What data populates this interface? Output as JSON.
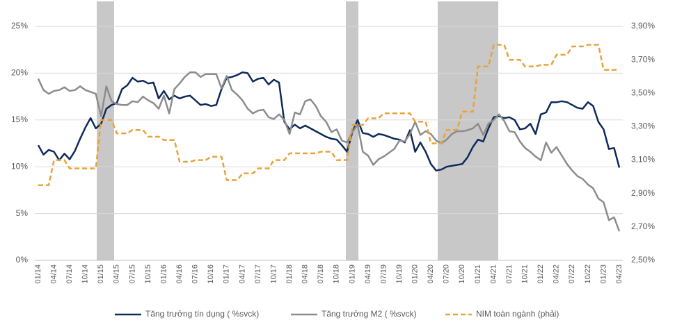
{
  "chart_data": {
    "type": "line",
    "categories": [
      "01/14",
      null,
      null,
      "04/14",
      null,
      null,
      "07/14",
      null,
      null,
      "10/14",
      null,
      null,
      "01/15",
      null,
      null,
      "04/15",
      null,
      null,
      "07/15",
      null,
      null,
      "10/15",
      null,
      null,
      "01/16",
      null,
      null,
      "04/16",
      null,
      null,
      "07/16",
      null,
      null,
      "10/16",
      null,
      null,
      "01/17",
      null,
      null,
      "04/17",
      null,
      null,
      "07/17",
      null,
      null,
      "10/17",
      null,
      null,
      "01/18",
      null,
      null,
      "04/18",
      null,
      null,
      "07/18",
      null,
      null,
      "10/18",
      null,
      null,
      "01/19",
      null,
      null,
      "04/19",
      null,
      null,
      "07/19",
      null,
      null,
      "10/19",
      null,
      null,
      "01/20",
      null,
      null,
      "04/20",
      null,
      null,
      "07/20",
      null,
      null,
      "10/20",
      null,
      null,
      "01/21",
      null,
      null,
      "04/21",
      null,
      null,
      "07/21",
      null,
      null,
      "10/21",
      null,
      null,
      "01/22",
      null,
      null,
      "04/22",
      null,
      null,
      "07/22",
      null,
      null,
      "10/22",
      null,
      null,
      "01/23",
      null,
      null,
      "04/23"
    ],
    "series": [
      {
        "name": "Tăng trưởng tín dụng ( %svck)",
        "color": "#0e2a5c",
        "dashed": false,
        "values": [
          12.3,
          11.3,
          11.8,
          11.6,
          10.7,
          11.4,
          10.8,
          11.7,
          13.0,
          14.2,
          15.2,
          14.1,
          14.6,
          16.2,
          16.6,
          16.8,
          18.3,
          18.7,
          19.5,
          19.1,
          19.2,
          18.9,
          19.0,
          17.3,
          18.1,
          17.2,
          17.6,
          17.3,
          17.5,
          17.6,
          17.1,
          16.6,
          16.7,
          16.5,
          16.6,
          18.3,
          19.5,
          19.6,
          19.8,
          20.1,
          20.0,
          19.1,
          19.4,
          19.5,
          18.8,
          19.3,
          19.0,
          14.8,
          14.0,
          14.5,
          14.1,
          14.4,
          14.1,
          13.8,
          13.5,
          13.2,
          13.0,
          12.9,
          12.3,
          11.6,
          13.7,
          15.0,
          13.6,
          13.5,
          13.2,
          13.5,
          13.4,
          13.2,
          13.0,
          12.9,
          12.6,
          13.9,
          11.6,
          12.6,
          11.6,
          10.3,
          9.6,
          9.7,
          10.0,
          10.1,
          10.2,
          10.3,
          11.0,
          12.1,
          12.9,
          12.7,
          14.1,
          15.3,
          15.4,
          15.2,
          15.3,
          15.0,
          14.0,
          14.1,
          14.6,
          13.5,
          15.6,
          15.8,
          16.9,
          16.9,
          17.0,
          16.9,
          16.6,
          16.3,
          16.2,
          16.9,
          16.5,
          14.8,
          14.0,
          11.9,
          12.0,
          9.9
        ]
      },
      {
        "name": "Tăng trưởng M2 ( %svck)",
        "color": "#8c8c8c",
        "dashed": false,
        "values": [
          19.4,
          18.2,
          17.8,
          18.1,
          18.2,
          18.5,
          18.1,
          18.2,
          18.6,
          18.2,
          18.0,
          17.8,
          15.4,
          18.6,
          17.0,
          16.7,
          16.6,
          16.6,
          17.0,
          16.9,
          17.5,
          17.1,
          16.8,
          16.2,
          17.6,
          15.7,
          18.3,
          18.9,
          19.6,
          20.1,
          20.1,
          19.6,
          19.9,
          19.9,
          19.9,
          18.4,
          19.7,
          18.2,
          17.7,
          17.1,
          16.2,
          15.7,
          16.0,
          16.1,
          15.3,
          15.1,
          15.6,
          15.0,
          13.5,
          15.8,
          15.6,
          17.0,
          17.2,
          16.5,
          15.4,
          14.8,
          13.7,
          14.0,
          12.8,
          12.6,
          13.7,
          14.5,
          11.6,
          11.2,
          10.2,
          10.8,
          11.1,
          11.5,
          11.9,
          12.8,
          12.7,
          13.5,
          14.8,
          13.4,
          13.8,
          13.5,
          12.8,
          12.5,
          12.9,
          13.5,
          13.8,
          13.8,
          13.9,
          14.1,
          14.6,
          13.4,
          14.6,
          15.0,
          15.6,
          14.9,
          13.8,
          13.7,
          12.7,
          12.0,
          11.6,
          11.1,
          10.7,
          12.6,
          11.5,
          12.1,
          11.2,
          10.3,
          9.6,
          9.0,
          8.7,
          8.1,
          7.7,
          6.6,
          6.2,
          4.3,
          4.6,
          3.1
        ]
      },
      {
        "name": "NIM toàn ngành (phải)",
        "color": "#e9a23b",
        "dashed": true,
        "axis": "y2",
        "values": [
          2.95,
          2.95,
          2.95,
          3.1,
          3.1,
          3.1,
          3.05,
          3.05,
          3.05,
          3.05,
          3.05,
          3.05,
          3.34,
          3.34,
          3.34,
          3.26,
          3.26,
          3.26,
          3.28,
          3.28,
          3.28,
          3.24,
          3.24,
          3.24,
          3.22,
          3.22,
          3.22,
          3.09,
          3.09,
          3.09,
          3.1,
          3.1,
          3.1,
          3.12,
          3.12,
          3.12,
          2.98,
          2.98,
          2.98,
          3.02,
          3.02,
          3.02,
          3.05,
          3.05,
          3.05,
          3.1,
          3.1,
          3.1,
          3.14,
          3.14,
          3.14,
          3.14,
          3.14,
          3.14,
          3.15,
          3.15,
          3.15,
          3.1,
          3.1,
          3.1,
          3.31,
          3.31,
          3.31,
          3.35,
          3.35,
          3.35,
          3.38,
          3.38,
          3.38,
          3.38,
          3.38,
          3.38,
          3.33,
          3.33,
          3.33,
          3.2,
          3.2,
          3.2,
          3.28,
          3.28,
          3.28,
          3.39,
          3.39,
          3.39,
          3.66,
          3.66,
          3.66,
          3.79,
          3.79,
          3.79,
          3.7,
          3.7,
          3.7,
          3.66,
          3.66,
          3.66,
          3.67,
          3.67,
          3.67,
          3.73,
          3.73,
          3.73,
          3.78,
          3.78,
          3.78,
          3.79,
          3.79,
          3.79,
          3.64,
          3.64,
          3.64,
          3.64
        ]
      }
    ],
    "ylim": [
      0,
      25
    ],
    "yticks": [
      {
        "value": 0,
        "label": "0%"
      },
      {
        "value": 5,
        "label": "5%"
      },
      {
        "value": 10,
        "label": "10%"
      },
      {
        "value": 15,
        "label": "15%"
      },
      {
        "value": 20,
        "label": "20%"
      },
      {
        "value": 25,
        "label": "25%"
      }
    ],
    "y2lim": [
      2.5,
      3.9
    ],
    "y2ticks": [
      {
        "value": 2.5,
        "label": "2,50%"
      },
      {
        "value": 2.7,
        "label": "2,70%"
      },
      {
        "value": 2.9,
        "label": "2,90%"
      },
      {
        "value": 3.1,
        "label": "3,10%"
      },
      {
        "value": 3.3,
        "label": "3,30%"
      },
      {
        "value": 3.5,
        "label": "3,50%"
      },
      {
        "value": 3.7,
        "label": "3,70%"
      },
      {
        "value": 3.9,
        "label": "3,90%"
      }
    ],
    "grid": true,
    "legend": "bottom"
  }
}
